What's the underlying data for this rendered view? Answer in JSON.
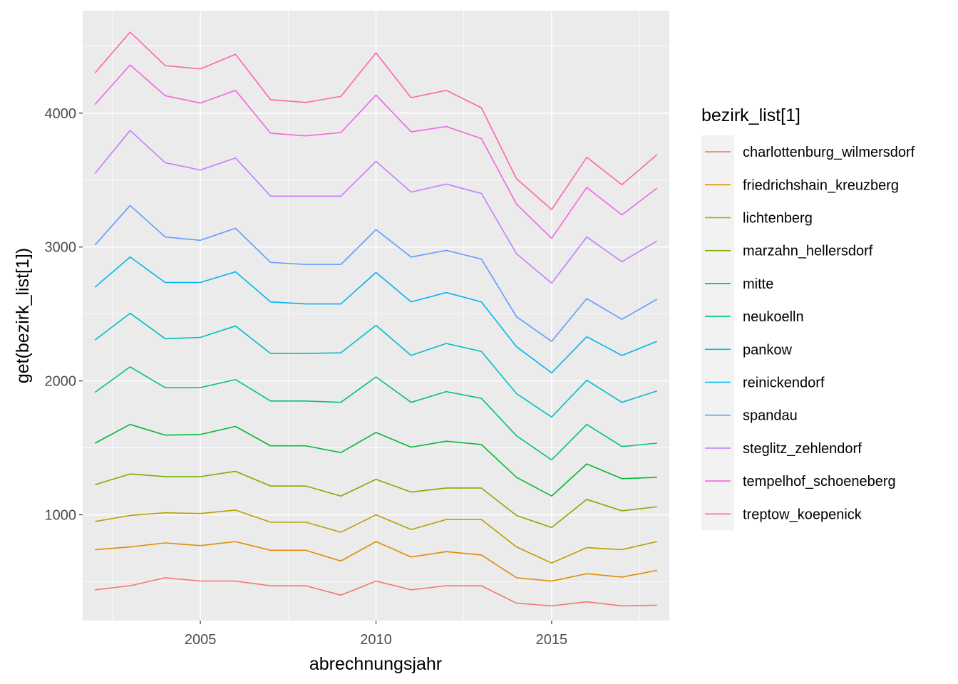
{
  "chart_data": {
    "type": "line",
    "xlabel": "abrechnungsjahr",
    "ylabel": "get(bezirk_list[1])",
    "xlim": [
      2001.65,
      2018.35
    ],
    "ylim": [
      210,
      4765
    ],
    "x_ticks": [
      2005,
      2010,
      2015
    ],
    "x_tick_labels": [
      "2005",
      "2010",
      "2015"
    ],
    "y_ticks": [
      1000,
      2000,
      3000,
      4000
    ],
    "y_tick_labels": [
      "1000",
      "2000",
      "3000",
      "4000"
    ],
    "grid": true,
    "legend": {
      "title": "bezirk_list[1]",
      "position": "right"
    },
    "x": [
      2002,
      2003,
      2004,
      2005,
      2006,
      2007,
      2008,
      2009,
      2010,
      2011,
      2012,
      2013,
      2014,
      2015,
      2016,
      2017,
      2018
    ],
    "series": [
      {
        "name": "charlottenburg_wilmersdorf",
        "color": "#F8766D",
        "values": [
          440,
          470,
          530,
          505,
          505,
          470,
          470,
          400,
          505,
          440,
          470,
          470,
          340,
          320,
          350,
          320,
          325
        ]
      },
      {
        "name": "friedrichshain_kreuzberg",
        "color": "#DE8C00",
        "values": [
          740,
          760,
          790,
          770,
          800,
          735,
          735,
          655,
          800,
          685,
          725,
          700,
          530,
          505,
          560,
          535,
          585
        ]
      },
      {
        "name": "lichtenberg",
        "color": "#B79F00",
        "values": [
          950,
          995,
          1015,
          1010,
          1035,
          945,
          945,
          870,
          1000,
          890,
          965,
          965,
          760,
          640,
          755,
          740,
          800
        ]
      },
      {
        "name": "marzahn_hellersdorf",
        "color": "#7CAE00",
        "values": [
          1225,
          1305,
          1285,
          1285,
          1325,
          1215,
          1215,
          1140,
          1265,
          1170,
          1200,
          1200,
          995,
          905,
          1115,
          1030,
          1060
        ]
      },
      {
        "name": "mitte",
        "color": "#00BA38",
        "values": [
          1535,
          1675,
          1595,
          1600,
          1660,
          1515,
          1515,
          1465,
          1615,
          1505,
          1550,
          1525,
          1280,
          1140,
          1380,
          1270,
          1280
        ]
      },
      {
        "name": "neukoelln",
        "color": "#00C08B",
        "values": [
          1915,
          2105,
          1950,
          1950,
          2010,
          1850,
          1850,
          1840,
          2030,
          1840,
          1920,
          1870,
          1590,
          1410,
          1675,
          1510,
          1535
        ]
      },
      {
        "name": "pankow",
        "color": "#00BFC4",
        "values": [
          2305,
          2505,
          2315,
          2325,
          2410,
          2205,
          2205,
          2210,
          2415,
          2190,
          2280,
          2220,
          1905,
          1730,
          2005,
          1840,
          1925
        ]
      },
      {
        "name": "reinickendorf",
        "color": "#00B4F0",
        "values": [
          2700,
          2925,
          2735,
          2735,
          2815,
          2590,
          2575,
          2575,
          2810,
          2590,
          2660,
          2590,
          2255,
          2060,
          2330,
          2190,
          2295
        ]
      },
      {
        "name": "spandau",
        "color": "#619CFF",
        "values": [
          3015,
          3310,
          3075,
          3050,
          3140,
          2885,
          2870,
          2870,
          3130,
          2925,
          2975,
          2910,
          2480,
          2295,
          2615,
          2460,
          2610
        ]
      },
      {
        "name": "steglitz_zehlendorf",
        "color": "#C77CFF",
        "values": [
          3550,
          3870,
          3630,
          3575,
          3665,
          3380,
          3380,
          3380,
          3640,
          3410,
          3470,
          3400,
          2950,
          2730,
          3075,
          2890,
          3045
        ]
      },
      {
        "name": "tempelhof_schoeneberg",
        "color": "#F564E3",
        "values": [
          4065,
          4360,
          4130,
          4075,
          4170,
          3850,
          3830,
          3855,
          4135,
          3860,
          3900,
          3810,
          3320,
          3065,
          3445,
          3240,
          3440
        ]
      },
      {
        "name": "treptow_koepenick",
        "color": "#FF64B0",
        "values": [
          4300,
          4605,
          4355,
          4330,
          4440,
          4100,
          4080,
          4125,
          4450,
          4115,
          4170,
          4040,
          3510,
          3280,
          3670,
          3465,
          3690
        ]
      }
    ]
  }
}
